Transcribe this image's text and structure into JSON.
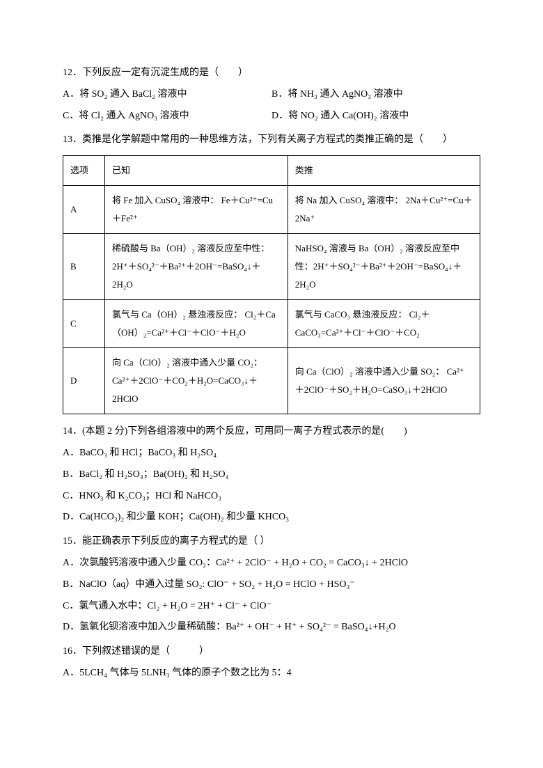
{
  "q12": {
    "stem": "12．下列反应一定有沉淀生成的是（　　）",
    "A": "A．将 SO₂ 通入 BaCl₂ 溶液中",
    "B": "B．将 NH₃ 通入 AgNO₃ 溶液中",
    "C": "C．将 Cl₂ 通入 AgNO₃ 溶液中",
    "D": "D．将 NO₂ 通入 Ca(OH)₂ 溶液中"
  },
  "q13": {
    "stem": "13．类推是化学解题中常用的一种思维方法，下列有关离子方程式的类推正确的是（　　）",
    "headers": {
      "c1": "选项",
      "c2": "已知",
      "c3": "类推"
    },
    "rows": [
      {
        "opt": "A",
        "known": "将 Fe 加入 CuSO₄ 溶液中：\nFe＋Cu²⁺=Cu＋Fe²⁺",
        "analog": "将 Na 加入 CuSO₄ 溶液中：\n2Na＋Cu²⁺=Cu＋2Na⁺"
      },
      {
        "opt": "B",
        "known": "稀硫酸与 Ba（OH）₂ 溶液反应至中性：\n2H⁺＋SO₄²⁻＋Ba²⁺＋2OH⁻=BaSO₄↓＋2H₂O",
        "analog": "NaHSO₄ 溶液与 Ba（OH）₂ 溶液反应至中性：2H⁺＋SO₄²⁻＋Ba²⁺＋2OH⁻=BaSO₄↓＋2H₂O"
      },
      {
        "opt": "C",
        "known": "氯气与 Ca（OH）₂ 悬浊液反应：\nCl₂＋Ca（OH）₂=Ca²⁺＋Cl⁻＋ClO⁻＋H₂O",
        "analog": "氯气与 CaCO₃ 悬浊液反应：\nCl₂＋CaCO₃=Ca²⁺＋Cl⁻＋ClO⁻＋CO₂"
      },
      {
        "opt": "D",
        "known": "向 Ca（ClO）₂ 溶液中通入少量 CO₂：\nCa²⁺＋2ClO⁻＋CO₂＋H₂O=CaCO₃↓＋2HClO",
        "analog": "向 Ca（ClO）₂ 溶液中通入少量 SO₂：\nCa²⁺＋2ClO⁻＋SO₂＋H₂O=CaSO₃↓＋2HClO"
      }
    ]
  },
  "q14": {
    "stem": "14．(本题 2 分)下列各组溶液中的两个反应，可用同一离子方程式表示的是(　　)",
    "A": "A．BaCO₃ 和 HCl；BaCO₃ 和 H₂SO₄",
    "B": "B．BaCl₂ 和 H₂SO₄；Ba(OH)₂ 和 H₂SO₄",
    "C": "C．HNO₃ 和 K₂CO₃；HCl 和 NaHCO₃",
    "D": "D．Ca(HCO₃)₂ 和少量 KOH；Ca(OH)₂ 和少量 KHCO₃"
  },
  "q15": {
    "stem": "15．能正确表示下列反应的离子方程式的是（ ）",
    "A": "A．次氯酸钙溶液中通入少量 CO₂：Ca²⁺ + 2ClO⁻ + H₂O + CO₂ = CaCO₃↓ + 2HClO",
    "B": "B．NaClO（aq）中通入过量 SO₂: ClO⁻ + SO₂ + H₂O = HClO + HSO₃⁻",
    "C": "C．氯气通入水中：Cl₂ + H₂O = 2H⁺ + Cl⁻ + ClO⁻",
    "D": "D．氢氧化钡溶液中加入少量稀硫酸：Ba²⁺ + OH⁻ + H⁺ + SO₄²⁻ = BaSO₄↓+H₂O"
  },
  "q16": {
    "stem": "16．下列叙述错误的是（　　　）",
    "A": "A．5LCH₄ 气体与 5LNH₃ 气体的原子个数之比为 5：4"
  }
}
